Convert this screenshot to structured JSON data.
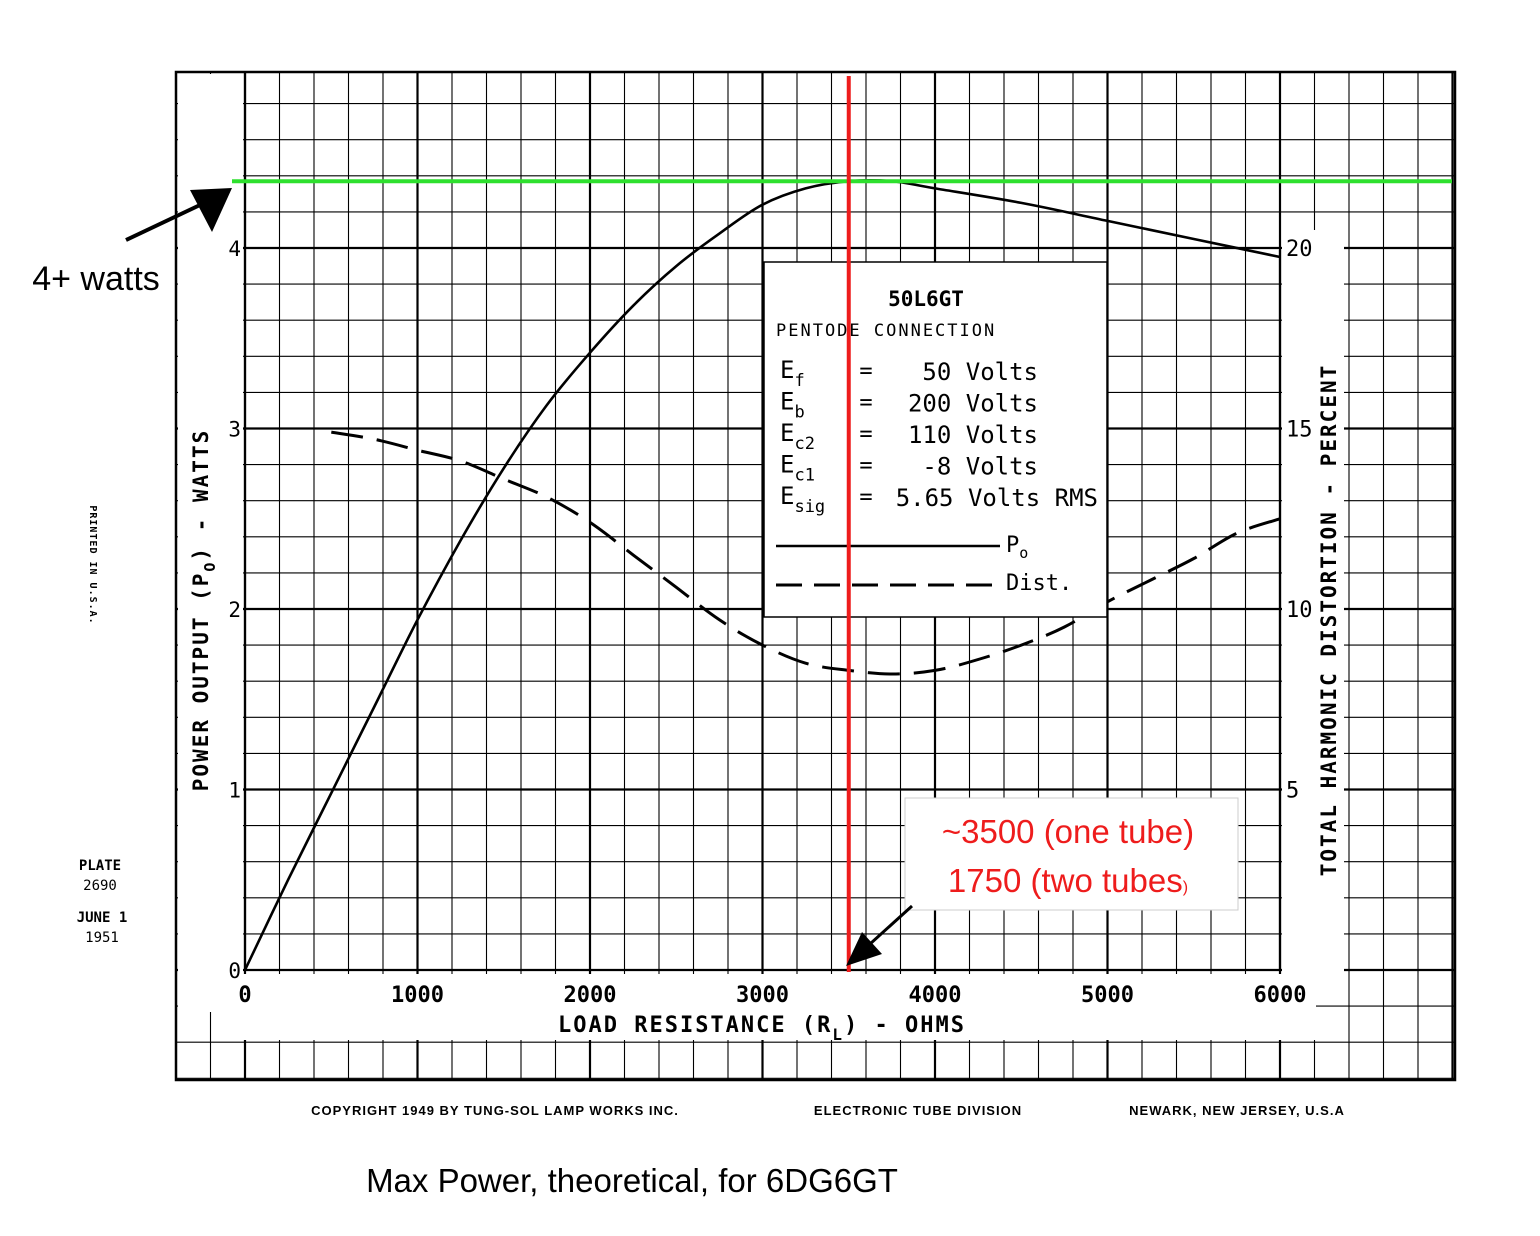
{
  "chart_data": {
    "type": "line",
    "xlabel": "LOAD RESISTANCE (R",
    "xlabel_sub": "L",
    "xlabel_tail": ") - OHMS",
    "ylabel_left": "POWER OUTPUT (P",
    "ylabel_left_sub": "O",
    "ylabel_left_tail": ") - WATTS",
    "ylabel_right": "TOTAL HARMONIC DISTORTION - PERCENT",
    "xlim": [
      0,
      6000
    ],
    "ylim_left": [
      0,
      5
    ],
    "ylim_right": [
      0,
      25
    ],
    "x_ticks": [
      "0",
      "1000",
      "2000",
      "3000",
      "4000",
      "5000",
      "6000"
    ],
    "y_left_ticks": [
      "0",
      "1",
      "2",
      "3",
      "4"
    ],
    "y_right_ticks": [
      "5",
      "10",
      "15",
      "20"
    ],
    "grid": true,
    "series": [
      {
        "name": "P",
        "name_sub": "o",
        "axis": "left",
        "style": "solid",
        "x": [
          0,
          250,
          500,
          750,
          1000,
          1250,
          1500,
          1750,
          2000,
          2250,
          2500,
          2750,
          3000,
          3250,
          3500,
          3750,
          4000,
          4500,
          5000,
          5500,
          6000
        ],
        "y": [
          0,
          0.5,
          0.98,
          1.46,
          1.94,
          2.38,
          2.78,
          3.13,
          3.42,
          3.68,
          3.9,
          4.08,
          4.24,
          4.33,
          4.37,
          4.37,
          4.33,
          4.25,
          4.15,
          4.05,
          3.95
        ]
      },
      {
        "name": "Dist.",
        "axis": "right",
        "style": "dashed",
        "x": [
          500,
          750,
          1000,
          1250,
          1500,
          1750,
          2000,
          2250,
          2500,
          2750,
          3000,
          3250,
          3500,
          3750,
          4000,
          4250,
          4500,
          4750,
          5000,
          5250,
          5500,
          5750,
          6000
        ],
        "y": [
          14.9,
          14.7,
          14.4,
          14.1,
          13.6,
          13.1,
          12.4,
          11.5,
          10.6,
          9.7,
          9.0,
          8.5,
          8.3,
          8.2,
          8.3,
          8.6,
          9.0,
          9.5,
          10.2,
          10.8,
          11.4,
          12.1,
          12.5
        ]
      }
    ],
    "inset": {
      "tube": "50L6GT",
      "connection": "PENTODE CONNECTION",
      "rows": [
        {
          "sym": "E",
          "sub": "f",
          "eq": "=",
          "val": "50 Volts"
        },
        {
          "sym": "E",
          "sub": "b",
          "eq": "=",
          "val": "200 Volts"
        },
        {
          "sym": "E",
          "sub": "c2",
          "eq": "=",
          "val": "110 Volts"
        },
        {
          "sym": "E",
          "sub": "c1",
          "eq": "=",
          "val": "-8 Volts"
        },
        {
          "sym": "E",
          "sub": "sig",
          "eq": "=",
          "val": "5.65 Volts RMS"
        }
      ]
    },
    "side_text": {
      "plate_label": "PLATE",
      "plate_number": "2690",
      "date_line1": "JUNE 1",
      "date_line2": "1951",
      "printed": "PRINTED IN U.S.A."
    },
    "footer": {
      "copyright": "COPYRIGHT 1949 BY TUNG-SOL LAMP WORKS INC.",
      "division": "ELECTRONIC TUBE DIVISION",
      "location": "NEWARK, NEW JERSEY, U.S.A"
    },
    "annotations": {
      "max_power_label": "4+ watts",
      "max_power_value": 4.37,
      "load_line1": "~3500 (one tube)",
      "load_line2": "1750 (two tubes",
      "load_line2_tail": ")",
      "load_value": 3500,
      "caption": "Max Power, theoretical, for 6DG6GT"
    },
    "colors": {
      "grid": "#000000",
      "curve": "#000000",
      "max_power_line": "#2ee02e",
      "load_line": "#ee1c1c",
      "load_text": "#ee1c1c",
      "background": "#ffffff"
    }
  }
}
